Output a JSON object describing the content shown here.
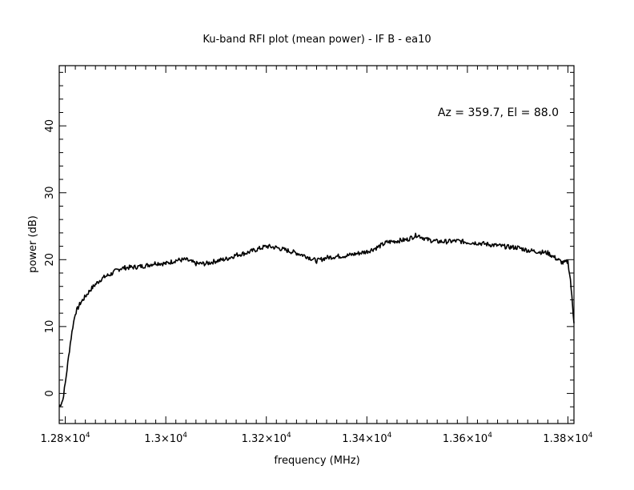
{
  "chart_data": {
    "type": "line",
    "title": "Ku-band RFI plot (mean power) - IF B - ea10",
    "xlabel": "frequency (MHz)",
    "ylabel": "power (dB)",
    "annotation": "Az = 359.7, El = 88.0",
    "xlim": [
      12788,
      13812
    ],
    "ylim": [
      -4.5,
      49
    ],
    "x_ticks": [
      {
        "value": 12800,
        "mantissa": "1.28",
        "exponent": "4"
      },
      {
        "value": 13000,
        "mantissa": "1.3",
        "exponent": "4"
      },
      {
        "value": 13200,
        "mantissa": "1.32",
        "exponent": "4"
      },
      {
        "value": 13400,
        "mantissa": "1.34",
        "exponent": "4"
      },
      {
        "value": 13600,
        "mantissa": "1.36",
        "exponent": "4"
      },
      {
        "value": 13800,
        "mantissa": "1.38",
        "exponent": "4"
      }
    ],
    "x_tick_base": "10",
    "x_tick_mult": "×",
    "y_ticks": [
      {
        "value": 0,
        "label": "0"
      },
      {
        "value": 10,
        "label": "10"
      },
      {
        "value": 20,
        "label": "20"
      },
      {
        "value": 30,
        "label": "30"
      },
      {
        "value": 40,
        "label": "40"
      }
    ],
    "x_minor_step": 20,
    "y_minor_step": 2,
    "line_color": "#000000",
    "grid": false,
    "series": [
      {
        "x": [
          12788,
          12795,
          12800,
          12805,
          12810,
          12815,
          12820,
          12830,
          12840,
          12850,
          12860,
          12870,
          12880,
          12890,
          12900,
          12910,
          12920,
          12940,
          12960,
          12980,
          13000,
          13020,
          13040,
          13060,
          13080,
          13100,
          13120,
          13140,
          13160,
          13180,
          13200,
          13220,
          13240,
          13260,
          13280,
          13300,
          13320,
          13340,
          13360,
          13380,
          13400,
          13420,
          13440,
          13460,
          13480,
          13500,
          13520,
          13540,
          13560,
          13580,
          13600,
          13620,
          13640,
          13660,
          13680,
          13700,
          13720,
          13740,
          13760,
          13780,
          13790,
          13800,
          13805,
          13812
        ],
        "y": [
          -2.0,
          -1.0,
          1.5,
          4.5,
          7.5,
          10.0,
          12.0,
          13.5,
          14.5,
          15.5,
          16.3,
          17.0,
          17.5,
          17.8,
          18.3,
          18.7,
          18.8,
          18.9,
          19.1,
          19.5,
          19.4,
          19.9,
          20.0,
          19.4,
          19.4,
          19.8,
          20.1,
          20.7,
          21.0,
          21.5,
          22.0,
          21.8,
          21.4,
          21.0,
          20.5,
          19.8,
          20.3,
          20.5,
          20.6,
          20.9,
          21.2,
          21.8,
          22.6,
          22.8,
          23.0,
          23.7,
          23.0,
          22.7,
          22.7,
          22.8,
          22.6,
          22.5,
          22.3,
          22.1,
          21.9,
          21.8,
          21.4,
          21.2,
          21.0,
          20.0,
          19.5,
          19.7,
          17.0,
          10.5
        ]
      }
    ]
  }
}
